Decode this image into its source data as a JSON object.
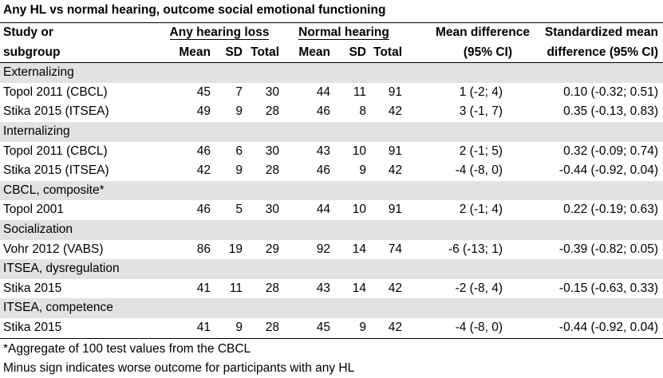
{
  "title": "Any HL vs normal hearing, outcome social emotional functioning",
  "header": {
    "study_line1": "Study or",
    "study_line2": "subgroup",
    "hl_group": "Any hearing loss",
    "nh_group": "Normal hearing",
    "col_mean": "Mean",
    "col_sd": "SD",
    "col_total": "Total",
    "md_line1": "Mean difference",
    "md_line2": "(95% CI)",
    "smd_line1": "Standardized mean",
    "smd_line2": "difference (95% CI)"
  },
  "groups": [
    {
      "name": "Externalizing",
      "rows": [
        {
          "study": "Topol 2011 (CBCL)",
          "hl_mean": "45",
          "hl_sd": "7",
          "hl_total": "30",
          "nh_mean": "44",
          "nh_sd": "11",
          "nh_total": "91",
          "md": "1 (-2; 4)",
          "smd": "0.10 (-0.32; 0.51)"
        },
        {
          "study": "Stika 2015 (ITSEA)",
          "hl_mean": "49",
          "hl_sd": "9",
          "hl_total": "28",
          "nh_mean": "46",
          "nh_sd": "8",
          "nh_total": "42",
          "md": "3 (-1, 7)",
          "smd": "0.35 (-0.13, 0.83)"
        }
      ]
    },
    {
      "name": "Internalizing",
      "rows": [
        {
          "study": "Topol 2011 (CBCL)",
          "hl_mean": "46",
          "hl_sd": "6",
          "hl_total": "30",
          "nh_mean": "43",
          "nh_sd": "10",
          "nh_total": "91",
          "md": "2 (-1; 5)",
          "smd": "0.32 (-0.09; 0.74)"
        },
        {
          "study": "Stika 2015 (ITSEA)",
          "hl_mean": "42",
          "hl_sd": "9",
          "hl_total": "28",
          "nh_mean": "46",
          "nh_sd": "9",
          "nh_total": "42",
          "md": "-4 (-8, 0)",
          "smd": "-0.44 (-0.92, 0.04)"
        }
      ]
    },
    {
      "name": "CBCL, composite*",
      "rows": [
        {
          "study": "Topol 2001",
          "hl_mean": "46",
          "hl_sd": "5",
          "hl_total": "30",
          "nh_mean": "44",
          "nh_sd": "10",
          "nh_total": "91",
          "md": "2 (-1; 4)",
          "smd": "0.22 (-0.19; 0.63)"
        }
      ]
    },
    {
      "name": "Socialization",
      "rows": [
        {
          "study": "Vohr 2012 (VABS)",
          "hl_mean": "86",
          "hl_sd": "19",
          "hl_total": "29",
          "nh_mean": "92",
          "nh_sd": "14",
          "nh_total": "74",
          "md": "-6 (-13; 1)",
          "smd": "-0.39 (-0.82; 0.05)"
        }
      ]
    },
    {
      "name": "ITSEA, dysregulation",
      "rows": [
        {
          "study": "Stika 2015",
          "hl_mean": "41",
          "hl_sd": "11",
          "hl_total": "28",
          "nh_mean": "43",
          "nh_sd": "14",
          "nh_total": "42",
          "md": "-2 (-8, 4)",
          "smd": "-0.15 (-0.63, 0.33)"
        }
      ]
    },
    {
      "name": "ITSEA, competence",
      "rows": [
        {
          "study": "Stika 2015",
          "hl_mean": "41",
          "hl_sd": "9",
          "hl_total": "28",
          "nh_mean": "45",
          "nh_sd": "9",
          "nh_total": "42",
          "md": "-4 (-8, 0)",
          "smd": "-0.44 (-0.92, 0.04)"
        }
      ]
    }
  ],
  "notes": [
    "*Aggregate of 100 test values from the CBCL",
    "Minus sign indicates worse outcome for participants with any HL"
  ]
}
